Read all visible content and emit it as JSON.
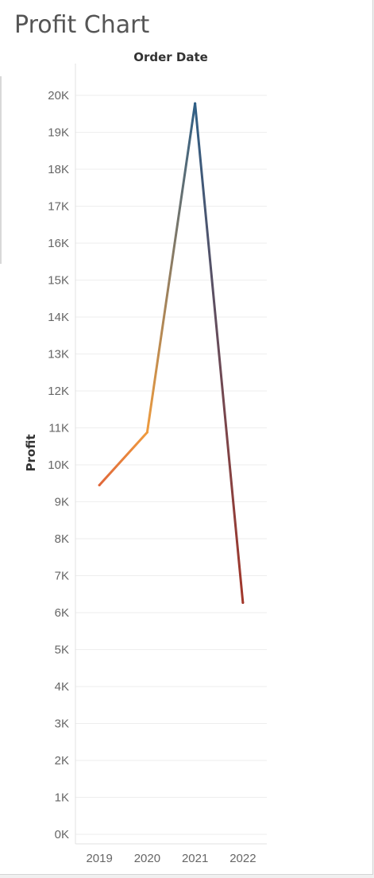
{
  "sheet": {
    "title": "Profit Chart"
  },
  "chart_data": {
    "type": "line",
    "title": "",
    "column_header": "Order Date",
    "xlabel": "",
    "ylabel": "Profit",
    "categories": [
      "2019",
      "2020",
      "2021",
      "2022"
    ],
    "series": [
      {
        "values": [
          9450,
          10880,
          19780,
          6270
        ]
      }
    ],
    "ylim": [
      0,
      20000
    ],
    "yticks": [
      0,
      1000,
      2000,
      3000,
      4000,
      5000,
      6000,
      7000,
      8000,
      9000,
      10000,
      11000,
      12000,
      13000,
      14000,
      15000,
      16000,
      17000,
      18000,
      19000,
      20000
    ],
    "ytick_labels": [
      "0K",
      "1K",
      "2K",
      "3K",
      "4K",
      "5K",
      "6K",
      "7K",
      "8K",
      "9K",
      "10K",
      "11K",
      "12K",
      "13K",
      "14K",
      "15K",
      "16K",
      "17K",
      "18K",
      "19K",
      "20K"
    ],
    "grid": true,
    "legend": "none",
    "colors": {
      "2019": "#e0673a",
      "2020": "#ef9b3e",
      "2021": "#2f5f86",
      "2022": "#a3372a",
      "gridline": "#eeeeee",
      "axis": "#e2e2e2"
    }
  }
}
